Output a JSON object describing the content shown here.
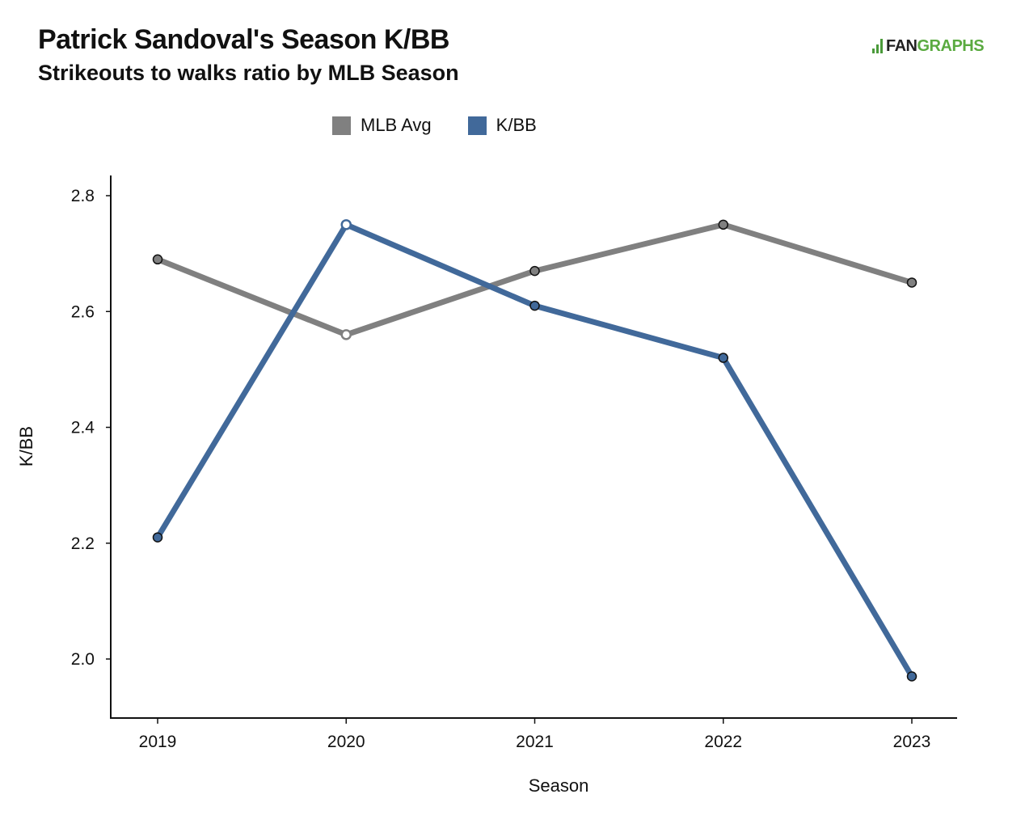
{
  "header": {
    "title": "Patrick Sandoval's Season K/BB",
    "subtitle": "Strikeouts to walks ratio by MLB Season"
  },
  "logo": {
    "prefix": "FAN",
    "suffix": "GRAPHS",
    "icon": "fangraphs-logo-icon"
  },
  "colors": {
    "mlb_avg": "#808080",
    "kbb": "#41699a",
    "axis": "#111111"
  },
  "chart_data": {
    "type": "line",
    "title": "Patrick Sandoval's Season K/BB",
    "subtitle": "Strikeouts to walks ratio by MLB Season",
    "xlabel": "Season",
    "ylabel": "K/BB",
    "x": [
      "2019",
      "2020",
      "2021",
      "2022",
      "2023"
    ],
    "ylim": [
      1.9,
      2.83
    ],
    "yticks": [
      "2.0",
      "2.2",
      "2.4",
      "2.6",
      "2.8"
    ],
    "grid": false,
    "legend": "top-center",
    "series": [
      {
        "name": "MLB Avg",
        "color": "#808080",
        "values": [
          2.69,
          2.56,
          2.67,
          2.75,
          2.65
        ],
        "hollow": [
          false,
          true,
          false,
          false,
          false
        ]
      },
      {
        "name": "K/BB",
        "color": "#41699a",
        "values": [
          2.21,
          2.75,
          2.61,
          2.52,
          1.97
        ],
        "hollow": [
          false,
          true,
          false,
          false,
          false
        ]
      }
    ]
  }
}
